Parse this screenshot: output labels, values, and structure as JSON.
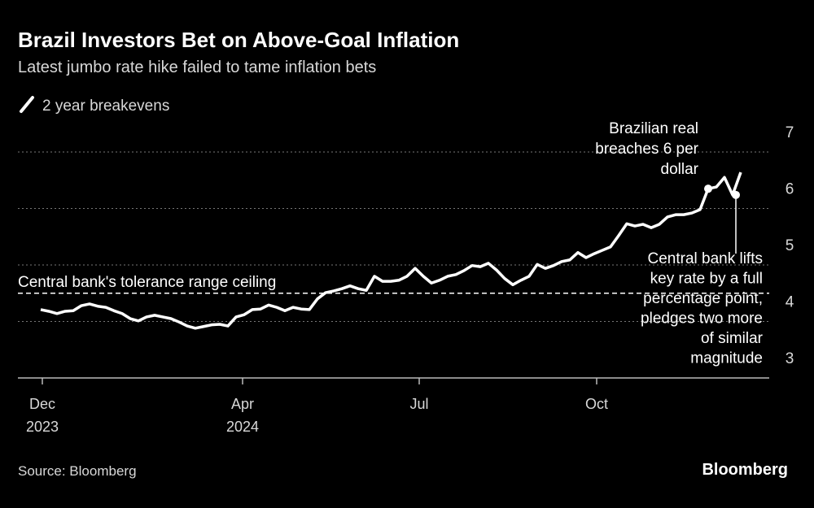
{
  "chart_data": {
    "type": "line",
    "title": "Brazil Investors Bet on Above-Goal Inflation",
    "subtitle": "Latest jumbo rate hike failed to tame inflation bets",
    "source": "Source: Bloomberg",
    "brand": "Bloomberg",
    "series": [
      {
        "name": "2 year breakevens",
        "color": "#ffffff",
        "values": [
          4.21,
          4.18,
          4.14,
          4.18,
          4.19,
          4.28,
          4.31,
          4.27,
          4.25,
          4.19,
          4.14,
          4.05,
          4.01,
          4.08,
          4.11,
          4.08,
          4.05,
          3.99,
          3.92,
          3.88,
          3.91,
          3.94,
          3.95,
          3.92,
          4.08,
          4.12,
          4.21,
          4.22,
          4.29,
          4.25,
          4.19,
          4.25,
          4.22,
          4.21,
          4.4,
          4.51,
          4.54,
          4.58,
          4.63,
          4.58,
          4.55,
          4.8,
          4.71,
          4.71,
          4.73,
          4.8,
          4.94,
          4.8,
          4.68,
          4.73,
          4.8,
          4.83,
          4.9,
          4.99,
          4.97,
          5.03,
          4.91,
          4.76,
          4.65,
          4.73,
          4.8,
          5.01,
          4.94,
          4.99,
          5.06,
          5.09,
          5.22,
          5.13,
          5.2,
          5.26,
          5.32,
          5.52,
          5.73,
          5.69,
          5.72,
          5.66,
          5.72,
          5.85,
          5.89,
          5.89,
          5.92,
          5.98,
          6.35,
          6.38,
          6.55,
          6.24,
          6.64
        ]
      }
    ],
    "ylim": [
      3,
      7
    ],
    "yticks": [
      3,
      4,
      5,
      6,
      7
    ],
    "xlim": [
      0,
      86
    ],
    "xticks": [
      {
        "value": 0.2,
        "label": [
          "Dec",
          "2023"
        ]
      },
      {
        "value": 24.8,
        "label": [
          "Apr",
          "2024"
        ]
      },
      {
        "value": 46.5,
        "label": [
          "Jul"
        ]
      },
      {
        "value": 68.3,
        "label": [
          "Oct"
        ]
      }
    ],
    "grid": true,
    "reference_line": {
      "value": 4.5,
      "label": "Central bank's tolerance range ceiling"
    },
    "annotations": [
      {
        "at": 82,
        "text": [
          "Brazilian real",
          "breaches 6 per",
          "dollar"
        ]
      },
      {
        "at": 85,
        "text": [
          "Central bank lifts",
          "key rate by a full",
          "percentage point,",
          "pledges two more",
          "of similar",
          "magnitude"
        ]
      }
    ]
  }
}
